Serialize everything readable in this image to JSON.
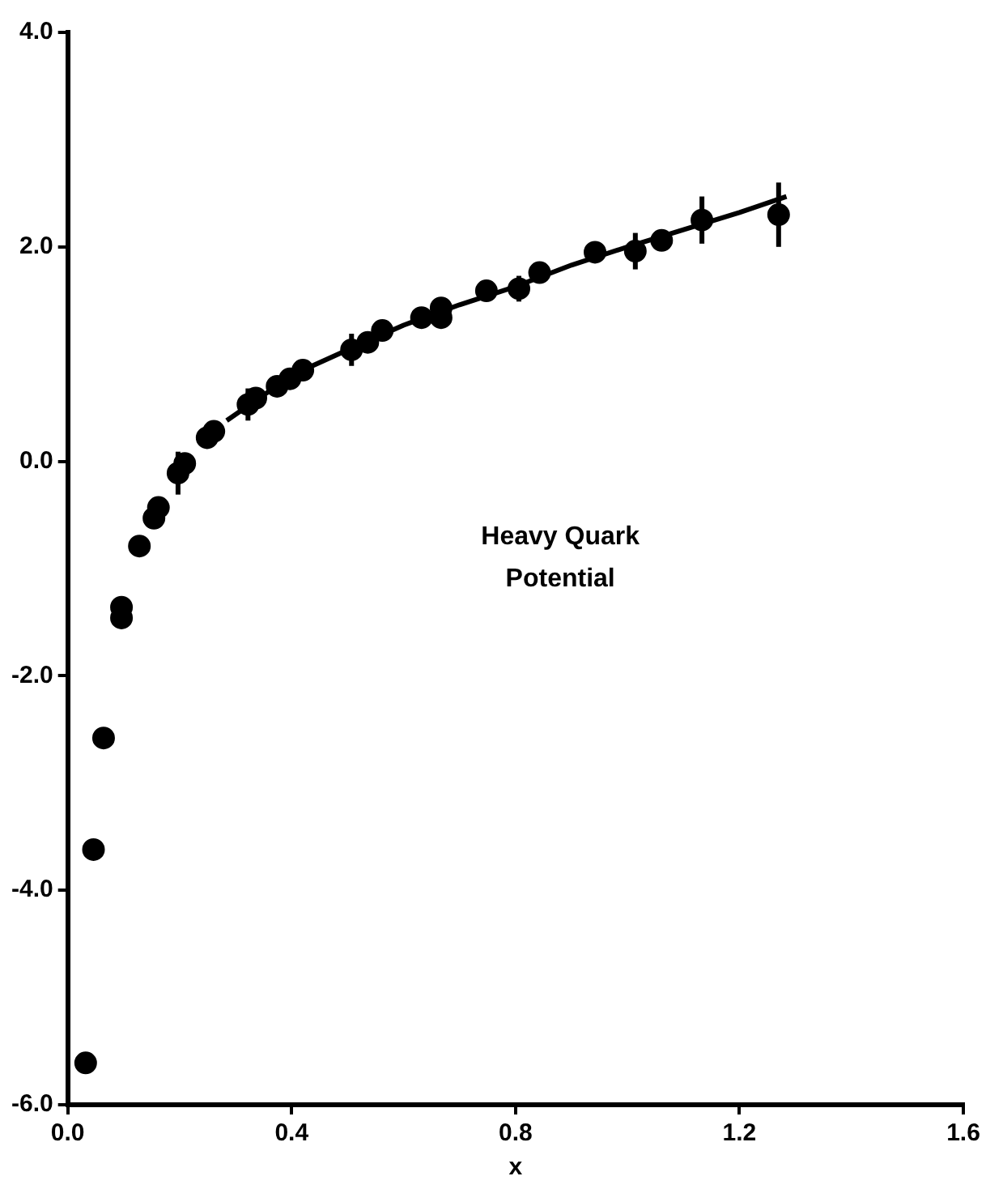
{
  "chart_data": {
    "type": "scatter",
    "xlabel": "x",
    "annotations": [
      "Heavy Quark\nPotential"
    ],
    "xlim": [
      0.0,
      1.6
    ],
    "xticks": [
      {
        "value": 0,
        "label": "0.0"
      },
      0.4,
      0.8,
      1.2,
      1.6
    ],
    "ylim": [
      -6.0,
      4.0
    ],
    "yticks": [
      {
        "value": -6,
        "label": "-6.0"
      },
      {
        "value": -4,
        "label": "-4.0"
      },
      {
        "value": -2,
        "label": "-2.0"
      },
      {
        "value": 0,
        "label": "0.0"
      },
      {
        "value": 2,
        "label": "2.0"
      },
      {
        "value": 4,
        "label": "4.0"
      }
    ],
    "grid": false,
    "legend": false,
    "marker": "circle",
    "series": [
      {
        "color": "#000000",
        "x": [
          0.032,
          0.046,
          0.064,
          0.096,
          0.096,
          0.128,
          0.154,
          0.162,
          0.197,
          0.209,
          0.249,
          0.261,
          0.322,
          0.336,
          0.374,
          0.397,
          0.42,
          0.507,
          0.536,
          0.562,
          0.632,
          0.667,
          0.667,
          0.748,
          0.806,
          0.843,
          0.942,
          1.014,
          1.061,
          1.133,
          1.27
        ],
        "values": [
          -5.61,
          -3.62,
          -2.58,
          -1.46,
          -1.36,
          -0.79,
          -0.53,
          -0.43,
          -0.11,
          -0.02,
          0.22,
          0.28,
          0.53,
          0.59,
          0.7,
          0.77,
          0.85,
          1.04,
          1.11,
          1.22,
          1.34,
          1.34,
          1.43,
          1.59,
          1.61,
          1.76,
          1.95,
          1.96,
          2.06,
          2.25,
          2.3
        ],
        "errors": [
          null,
          null,
          null,
          null,
          null,
          null,
          null,
          null,
          0.2,
          null,
          null,
          null,
          0.15,
          null,
          null,
          null,
          null,
          0.15,
          null,
          null,
          null,
          null,
          null,
          null,
          0.12,
          null,
          null,
          0.17,
          null,
          0.22,
          0.3
        ]
      },
      {
        "type": "line",
        "color": "#000000",
        "marker": "none",
        "line_style": "solid",
        "x": [
          0.284,
          0.35,
          0.42,
          0.5,
          0.6,
          0.7,
          0.8,
          0.9,
          1.0,
          1.1,
          1.2,
          1.284
        ],
        "values": [
          0.38,
          0.62,
          0.85,
          1.04,
          1.27,
          1.46,
          1.63,
          1.83,
          2.0,
          2.16,
          2.32,
          2.47
        ]
      }
    ]
  }
}
